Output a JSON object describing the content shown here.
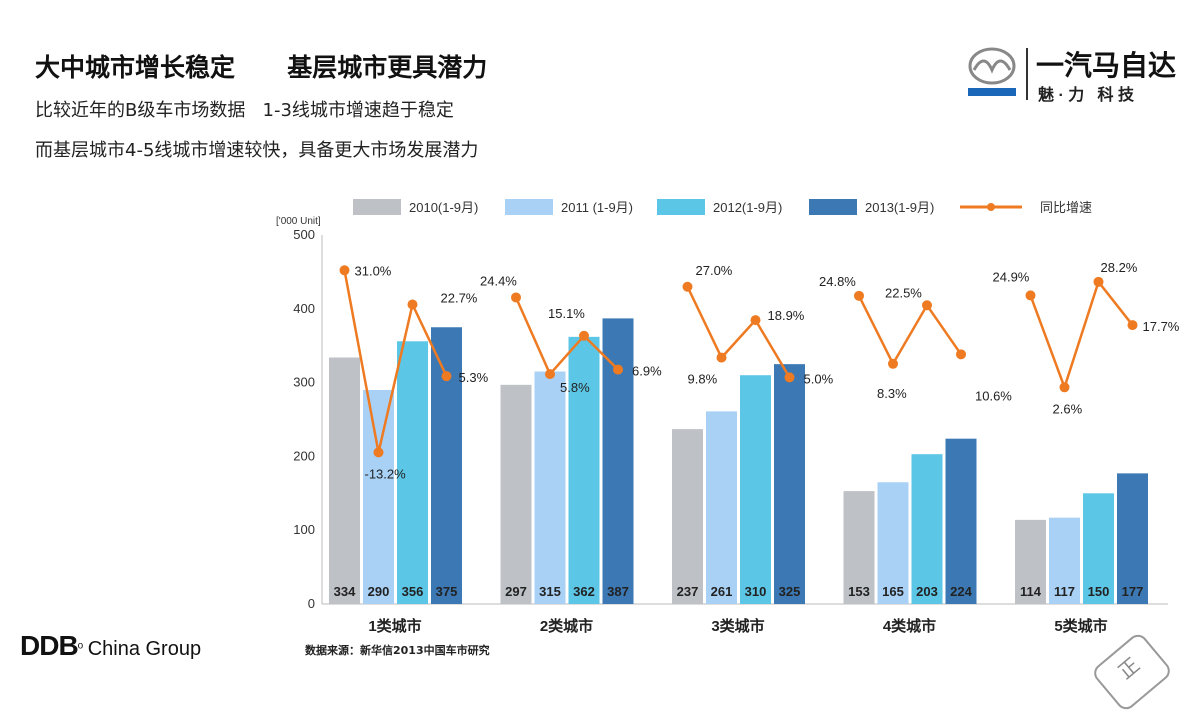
{
  "header": {
    "title": "大中城市增长稳定      基层城市更具潜力",
    "line1": "比较近年的B级车市场数据   1-3线城市增速趋于稳定",
    "line2": "而基层城市4-5线城市增速较快，具备更大市场发展潜力"
  },
  "logo": {
    "brand": "mazda",
    "name": "一汽马自达",
    "slogan": "魅 · 力   科 技"
  },
  "footer": {
    "agency_logo": "DDB",
    "agency_name": "China Group",
    "source": "数据来源：新华信2013中国车市研究",
    "stamp": "正"
  },
  "colors": {
    "2010": "#bec2c7",
    "2011": "#a9d1f6",
    "2012": "#5cc6e6",
    "2013": "#3b78b4",
    "growth": "#ee7a22"
  },
  "chart_data": {
    "type": "bar",
    "unit_label": "['000 Unit]",
    "ylim": [
      0,
      500
    ],
    "yticks": [
      0,
      100,
      200,
      300,
      400,
      500
    ],
    "categories": [
      "1类城市",
      "2类城市",
      "3类城市",
      "4类城市",
      "5类城市"
    ],
    "series": [
      {
        "name": "2010(1-9月)",
        "values": [
          334,
          297,
          237,
          153,
          114
        ]
      },
      {
        "name": "2011 (1-9月)",
        "values": [
          290,
          315,
          261,
          165,
          117
        ]
      },
      {
        "name": "2012(1-9月)",
        "values": [
          356,
          362,
          310,
          203,
          150
        ]
      },
      {
        "name": "2013(1-9月)",
        "values": [
          375,
          387,
          325,
          224,
          177
        ]
      }
    ],
    "growth": {
      "name": "同比增速",
      "type": "line",
      "unit": "%",
      "values": [
        [
          31.0,
          -13.2,
          22.7,
          5.3
        ],
        [
          24.4,
          5.8,
          15.1,
          6.9
        ],
        [
          27.0,
          9.8,
          18.9,
          5.0
        ],
        [
          24.8,
          8.3,
          22.5,
          10.6
        ],
        [
          24.9,
          2.6,
          28.2,
          17.7
        ]
      ]
    },
    "legend": "top",
    "grid": false
  }
}
